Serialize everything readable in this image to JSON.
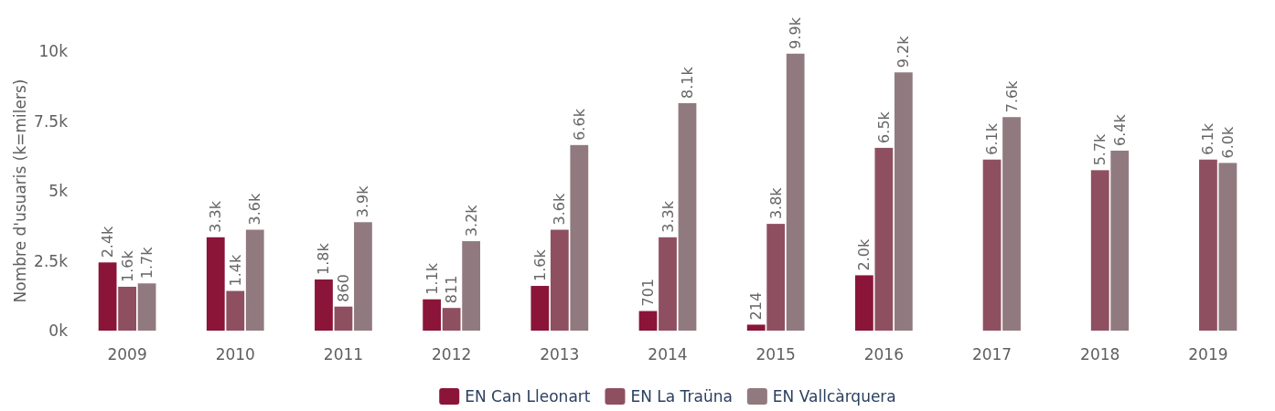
{
  "chart_data": {
    "type": "bar",
    "ylabel": "Nombre d'usuaris (k=milers)",
    "categories": [
      "2009",
      "2010",
      "2011",
      "2012",
      "2013",
      "2014",
      "2015",
      "2016",
      "2017",
      "2018",
      "2019"
    ],
    "series": [
      {
        "name": "EN Can Lleonart",
        "color": "#8a1538",
        "values": [
          2440,
          3340,
          1830,
          1120,
          1600,
          701,
          214,
          1980,
          null,
          null,
          null
        ],
        "value_labels": [
          "2.4k",
          "3.3k",
          "1.8k",
          "1.1k",
          "1.6k",
          "701",
          "214",
          "2.0k",
          null,
          null,
          null
        ]
      },
      {
        "name": "EN La Traüna",
        "color": "#8e5060",
        "values": [
          1570,
          1420,
          860,
          811,
          3610,
          3340,
          3820,
          6540,
          6120,
          5740,
          6120
        ],
        "value_labels": [
          "1.6k",
          "1.4k",
          "860",
          "811",
          "3.6k",
          "3.3k",
          "3.8k",
          "6.5k",
          "6.1k",
          "5.7k",
          "6.1k"
        ]
      },
      {
        "name": "EN Vallcàrquera",
        "color": "#917a7f",
        "values": [
          1690,
          3610,
          3880,
          3200,
          6640,
          8140,
          9910,
          9240,
          7640,
          6440,
          6000
        ],
        "value_labels": [
          "1.7k",
          "3.6k",
          "3.9k",
          "3.2k",
          "6.6k",
          "8.1k",
          "9.9k",
          "9.2k",
          "7.6k",
          "6.4k",
          "6.0k"
        ]
      }
    ],
    "ylim": [
      0,
      10000
    ],
    "yticks": [
      {
        "value": 0,
        "label": "0k"
      },
      {
        "value": 2500,
        "label": "2.5k"
      },
      {
        "value": 5000,
        "label": "5k"
      },
      {
        "value": 7500,
        "label": "7.5k"
      },
      {
        "value": 10000,
        "label": "10k"
      }
    ],
    "legend": "bottom"
  }
}
